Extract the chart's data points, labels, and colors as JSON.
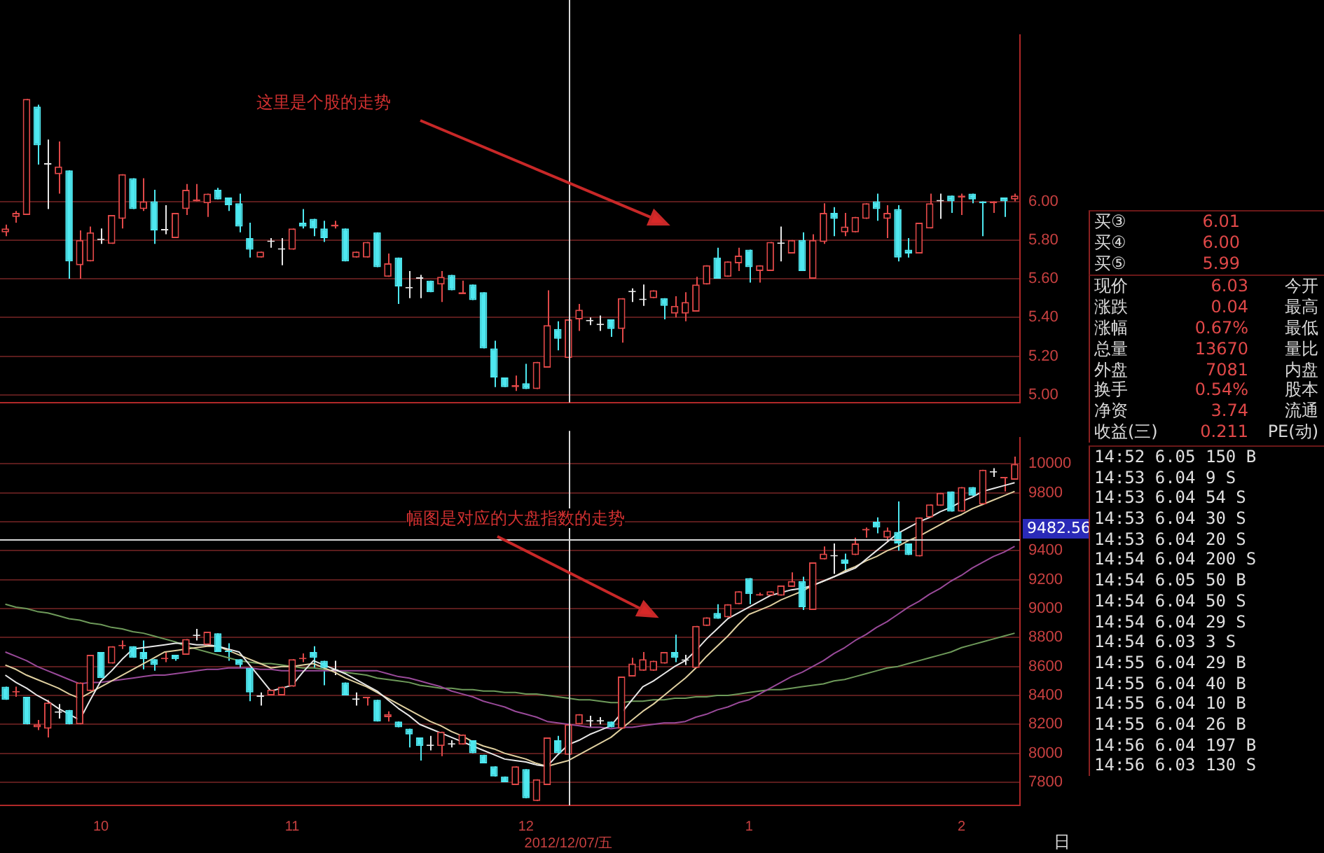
{
  "chart_data": [
    {
      "type": "candlestick",
      "tick_labels": "y",
      "grid": "y",
      "categories": [
        null,
        null,
        null,
        null,
        null,
        null,
        null,
        null,
        null,
        "10",
        null,
        null,
        null,
        null,
        null,
        null,
        null,
        null,
        null,
        null,
        null,
        null,
        null,
        null,
        null,
        null,
        null,
        "11",
        null,
        null,
        null,
        null,
        null,
        null,
        null,
        null,
        null,
        null,
        null,
        null,
        null,
        null,
        null,
        null,
        null,
        null,
        null,
        null,
        null,
        "12",
        null,
        null,
        null,
        "2012/12/07/五",
        null,
        null,
        null,
        null,
        null,
        null,
        null,
        null,
        null,
        null,
        null,
        null,
        null,
        null,
        null,
        null,
        "1",
        null,
        null,
        null,
        null,
        null,
        null,
        null,
        null,
        null,
        null,
        null,
        null,
        null,
        null,
        null,
        null,
        null,
        null,
        null,
        "2",
        null,
        null,
        null,
        null,
        null
      ],
      "ohlc": [
        [
          5.84,
          5.88,
          5.82,
          5.86
        ],
        [
          5.92,
          5.95,
          5.89,
          5.94
        ],
        [
          5.93,
          6.53,
          5.93,
          6.53
        ],
        [
          6.49,
          6.5,
          6.19,
          6.29
        ],
        [
          6.19,
          6.32,
          5.96,
          6.19
        ],
        [
          6.14,
          6.31,
          6.04,
          6.18
        ],
        [
          6.16,
          6.16,
          5.6,
          5.69
        ],
        [
          5.67,
          5.85,
          5.6,
          5.8
        ],
        [
          5.69,
          5.87,
          5.69,
          5.84
        ],
        [
          5.8,
          5.86,
          5.78,
          5.8
        ],
        [
          5.78,
          5.93,
          5.78,
          5.93
        ],
        [
          5.91,
          6.14,
          5.86,
          6.14
        ],
        [
          6.12,
          6.12,
          5.96,
          5.96
        ],
        [
          5.96,
          6.12,
          5.95,
          6.0
        ],
        [
          6.0,
          6.06,
          5.78,
          5.85
        ],
        [
          5.85,
          5.98,
          5.83,
          5.85
        ],
        [
          5.81,
          5.94,
          5.81,
          5.94
        ],
        [
          5.96,
          6.09,
          5.93,
          6.06
        ],
        [
          6.0,
          6.09,
          6.0,
          6.01
        ],
        [
          5.99,
          6.04,
          5.92,
          6.04
        ],
        [
          6.06,
          6.07,
          6.01,
          6.01
        ],
        [
          6.02,
          6.02,
          5.95,
          5.98
        ],
        [
          5.99,
          6.04,
          5.84,
          5.87
        ],
        [
          5.81,
          5.89,
          5.71,
          5.75
        ],
        [
          5.71,
          5.74,
          5.71,
          5.74
        ],
        [
          5.79,
          5.81,
          5.76,
          5.79
        ],
        [
          5.75,
          5.81,
          5.67,
          5.75
        ],
        [
          5.75,
          5.86,
          5.75,
          5.86
        ],
        [
          5.89,
          5.96,
          5.86,
          5.87
        ],
        [
          5.91,
          5.91,
          5.82,
          5.86
        ],
        [
          5.86,
          5.9,
          5.79,
          5.81
        ],
        [
          5.87,
          5.9,
          5.86,
          5.88
        ],
        [
          5.86,
          5.86,
          5.69,
          5.69
        ],
        [
          5.71,
          5.74,
          5.71,
          5.74
        ],
        [
          5.71,
          5.79,
          5.71,
          5.79
        ],
        [
          5.84,
          5.84,
          5.66,
          5.66
        ],
        [
          5.61,
          5.73,
          5.61,
          5.68
        ],
        [
          5.71,
          5.71,
          5.47,
          5.56
        ],
        [
          5.55,
          5.64,
          5.5,
          5.55
        ],
        [
          5.6,
          5.62,
          5.5,
          5.6
        ],
        [
          5.59,
          5.59,
          5.53,
          5.53
        ],
        [
          5.57,
          5.64,
          5.48,
          5.61
        ],
        [
          5.62,
          5.62,
          5.54,
          5.54
        ],
        [
          5.52,
          5.59,
          5.52,
          5.53
        ],
        [
          5.57,
          5.57,
          5.49,
          5.49
        ],
        [
          5.53,
          5.53,
          5.24,
          5.24
        ],
        [
          5.24,
          5.28,
          5.04,
          5.09
        ],
        [
          5.09,
          5.09,
          5.04,
          5.04
        ],
        [
          5.04,
          5.1,
          5.02,
          5.05
        ],
        [
          5.06,
          5.16,
          5.03,
          5.03
        ],
        [
          5.03,
          5.17,
          5.03,
          5.17
        ],
        [
          5.14,
          5.54,
          5.14,
          5.36
        ],
        [
          5.34,
          5.38,
          5.23,
          5.29
        ],
        [
          5.19,
          5.39,
          5.19,
          5.39
        ],
        [
          5.39,
          5.47,
          5.33,
          5.44
        ],
        [
          5.38,
          5.4,
          5.36,
          5.38
        ],
        [
          5.36,
          5.41,
          5.33,
          5.36
        ],
        [
          5.39,
          5.39,
          5.3,
          5.34
        ],
        [
          5.34,
          5.5,
          5.27,
          5.5
        ],
        [
          5.53,
          5.55,
          5.48,
          5.53
        ],
        [
          5.49,
          5.57,
          5.46,
          5.49
        ],
        [
          5.5,
          5.54,
          5.5,
          5.54
        ],
        [
          5.5,
          5.5,
          5.39,
          5.46
        ],
        [
          5.42,
          5.51,
          5.4,
          5.46
        ],
        [
          5.42,
          5.53,
          5.38,
          5.48
        ],
        [
          5.43,
          5.61,
          5.43,
          5.57
        ],
        [
          5.57,
          5.67,
          5.57,
          5.67
        ],
        [
          5.71,
          5.76,
          5.6,
          5.6
        ],
        [
          5.61,
          5.69,
          5.61,
          5.69
        ],
        [
          5.68,
          5.76,
          5.64,
          5.72
        ],
        [
          5.75,
          5.75,
          5.58,
          5.66
        ],
        [
          5.64,
          5.67,
          5.58,
          5.67
        ],
        [
          5.64,
          5.79,
          5.64,
          5.79
        ],
        [
          5.78,
          5.87,
          5.69,
          5.78
        ],
        [
          5.73,
          5.8,
          5.73,
          5.8
        ],
        [
          5.8,
          5.84,
          5.64,
          5.64
        ],
        [
          5.6,
          5.83,
          5.6,
          5.8
        ],
        [
          5.79,
          5.99,
          5.78,
          5.94
        ],
        [
          5.94,
          5.97,
          5.82,
          5.91
        ],
        [
          5.84,
          5.94,
          5.82,
          5.87
        ],
        [
          5.84,
          5.92,
          5.84,
          5.92
        ],
        [
          5.91,
          5.99,
          5.91,
          5.99
        ],
        [
          6.0,
          6.04,
          5.9,
          5.96
        ],
        [
          5.91,
          5.98,
          5.81,
          5.94
        ],
        [
          5.96,
          5.98,
          5.69,
          5.71
        ],
        [
          5.75,
          5.81,
          5.71,
          5.73
        ],
        [
          5.73,
          5.89,
          5.73,
          5.89
        ],
        [
          5.86,
          6.04,
          5.86,
          5.99
        ],
        [
          6.0,
          6.04,
          5.91,
          6.0
        ],
        [
          6.03,
          6.03,
          5.94,
          6.0
        ],
        [
          6.02,
          6.04,
          5.93,
          6.03
        ],
        [
          6.04,
          6.04,
          5.99,
          6.01
        ],
        [
          6.0,
          6.0,
          5.82,
          5.99
        ],
        [
          5.99,
          6.0,
          5.94,
          6.0
        ],
        [
          6.02,
          6.02,
          5.92,
          6.0
        ],
        [
          6.01,
          6.04,
          6.0,
          6.03
        ]
      ],
      "colors": [
        "#e04848",
        "#e04848",
        "#e04848",
        "#4ee8f0",
        "#e8e8e8",
        "#e04848",
        "#4ee8f0",
        "#e04848",
        "#e04848",
        "#e8e8e8",
        "#e04848",
        "#e04848",
        "#4ee8f0",
        "#e04848",
        "#4ee8f0",
        "#e8e8e8",
        "#e04848",
        "#e04848",
        "#e04848",
        "#e04848",
        "#4ee8f0",
        "#4ee8f0",
        "#4ee8f0",
        "#4ee8f0",
        "#e04848",
        "#e8e8e8",
        "#e8e8e8",
        "#e04848",
        "#4ee8f0",
        "#4ee8f0",
        "#4ee8f0",
        "#e04848",
        "#4ee8f0",
        "#e04848",
        "#e04848",
        "#4ee8f0",
        "#e04848",
        "#4ee8f0",
        "#e8e8e8",
        "#e8e8e8",
        "#4ee8f0",
        "#e04848",
        "#4ee8f0",
        "#e04848",
        "#4ee8f0",
        "#4ee8f0",
        "#4ee8f0",
        "#4ee8f0",
        "#e04848",
        "#4ee8f0",
        "#e04848",
        "#e04848",
        "#4ee8f0",
        "#e04848",
        "#e04848",
        "#e8e8e8",
        "#e8e8e8",
        "#4ee8f0",
        "#e04848",
        "#e8e8e8",
        "#e8e8e8",
        "#e04848",
        "#4ee8f0",
        "#e04848",
        "#e04848",
        "#e04848",
        "#e04848",
        "#4ee8f0",
        "#e04848",
        "#e04848",
        "#4ee8f0",
        "#e04848",
        "#e04848",
        "#e8e8e8",
        "#e04848",
        "#4ee8f0",
        "#e04848",
        "#e04848",
        "#4ee8f0",
        "#e04848",
        "#e04848",
        "#e04848",
        "#4ee8f0",
        "#e04848",
        "#4ee8f0",
        "#4ee8f0",
        "#e04848",
        "#e04848",
        "#e8e8e8",
        "#4ee8f0",
        "#e04848",
        "#4ee8f0",
        "#4ee8f0",
        "#e04848",
        "#4ee8f0",
        "#e04848"
      ],
      "ylim": [
        4.96,
        6.86
      ],
      "yticks": [
        {
          "value": 5,
          "label": "5.00"
        },
        {
          "value": 5.2,
          "label": "5.20"
        },
        {
          "value": 5.4,
          "label": "5.40"
        },
        {
          "value": 5.6,
          "label": "5.60"
        },
        {
          "value": 5.8,
          "label": "5.80"
        },
        {
          "value": 6,
          "label": "6.00"
        }
      ],
      "ref_lines": [
        {
          "axis": "x",
          "value": "2012/12/07/五",
          "color": "#d8d8d8"
        }
      ],
      "annotations": [
        "这里是个股的走势"
      ]
    },
    {
      "type": "candlestick",
      "grid": "y",
      "categories": [
        null,
        null,
        null,
        null,
        null,
        null,
        null,
        null,
        null,
        "10",
        null,
        null,
        null,
        null,
        null,
        null,
        null,
        null,
        null,
        null,
        null,
        null,
        null,
        null,
        null,
        null,
        null,
        "11",
        null,
        null,
        null,
        null,
        null,
        null,
        null,
        null,
        null,
        null,
        null,
        null,
        null,
        null,
        null,
        null,
        null,
        null,
        null,
        null,
        null,
        "12",
        null,
        null,
        null,
        "2012/12/07/五",
        null,
        null,
        null,
        null,
        null,
        null,
        null,
        null,
        null,
        null,
        null,
        null,
        null,
        null,
        null,
        null,
        "1",
        null,
        null,
        null,
        null,
        null,
        null,
        null,
        null,
        null,
        null,
        null,
        null,
        null,
        null,
        null,
        null,
        null,
        null,
        null,
        "2",
        null,
        null,
        null,
        null,
        null
      ],
      "ohlc": [
        [
          8460,
          8460,
          8370,
          8370
        ],
        [
          8420,
          8460,
          8390,
          8430
        ],
        [
          8390,
          8390,
          8200,
          8200
        ],
        [
          8180,
          8230,
          8160,
          8200
        ],
        [
          8170,
          8370,
          8110,
          8350
        ],
        [
          8280,
          8340,
          8240,
          8280
        ],
        [
          8300,
          8300,
          8200,
          8200
        ],
        [
          8200,
          8490,
          8200,
          8490
        ],
        [
          8430,
          8680,
          8430,
          8680
        ],
        [
          8700,
          8700,
          8520,
          8520
        ],
        [
          8620,
          8740,
          8620,
          8740
        ],
        [
          8740,
          8780,
          8720,
          8750
        ],
        [
          8740,
          8740,
          8660,
          8660
        ],
        [
          8700,
          8780,
          8580,
          8650
        ],
        [
          8650,
          8650,
          8570,
          8610
        ],
        [
          8650,
          8700,
          8630,
          8660
        ],
        [
          8680,
          8680,
          8640,
          8650
        ],
        [
          8680,
          8790,
          8680,
          8790
        ],
        [
          8810,
          8860,
          8780,
          8810
        ],
        [
          8750,
          8840,
          8750,
          8840
        ],
        [
          8830,
          8830,
          8700,
          8700
        ],
        [
          8710,
          8760,
          8640,
          8700
        ],
        [
          8650,
          8650,
          8590,
          8610
        ],
        [
          8590,
          8590,
          8360,
          8420
        ],
        [
          8390,
          8420,
          8330,
          8390
        ],
        [
          8400,
          8440,
          8400,
          8440
        ],
        [
          8400,
          8460,
          8400,
          8460
        ],
        [
          8460,
          8650,
          8460,
          8650
        ],
        [
          8650,
          8690,
          8630,
          8660
        ],
        [
          8700,
          8740,
          8590,
          8660
        ],
        [
          8640,
          8640,
          8470,
          8590
        ],
        [
          8570,
          8640,
          8540,
          8570
        ],
        [
          8490,
          8490,
          8400,
          8400
        ],
        [
          8370,
          8420,
          8330,
          8370
        ],
        [
          8380,
          8390,
          8330,
          8390
        ],
        [
          8370,
          8370,
          8220,
          8220
        ],
        [
          8250,
          8290,
          8220,
          8270
        ],
        [
          8220,
          8220,
          8180,
          8180
        ],
        [
          8170,
          8170,
          8040,
          8130
        ],
        [
          8110,
          8110,
          7950,
          8050
        ],
        [
          8050,
          8120,
          8020,
          8050
        ],
        [
          8050,
          8150,
          7980,
          8150
        ],
        [
          8060,
          8090,
          8040,
          8060
        ],
        [
          8060,
          8130,
          8060,
          8130
        ],
        [
          8090,
          8090,
          8000,
          8000
        ],
        [
          7990,
          7990,
          7930,
          7930
        ],
        [
          7910,
          7910,
          7840,
          7840
        ],
        [
          7840,
          7840,
          7800,
          7800
        ],
        [
          7780,
          7910,
          7780,
          7910
        ],
        [
          7890,
          7890,
          7690,
          7690
        ],
        [
          7670,
          7820,
          7670,
          7820
        ],
        [
          7780,
          8110,
          7780,
          8110
        ],
        [
          8090,
          8120,
          8000,
          8000
        ],
        [
          7990,
          8200,
          7990,
          8200
        ],
        [
          8200,
          8270,
          8200,
          8270
        ],
        [
          8220,
          8260,
          8180,
          8220
        ],
        [
          8220,
          8250,
          8200,
          8220
        ],
        [
          8220,
          8220,
          8180,
          8180
        ],
        [
          8170,
          8530,
          8170,
          8530
        ],
        [
          8530,
          8660,
          8530,
          8620
        ],
        [
          8570,
          8700,
          8570,
          8650
        ],
        [
          8570,
          8640,
          8570,
          8640
        ],
        [
          8620,
          8700,
          8620,
          8700
        ],
        [
          8700,
          8820,
          8630,
          8660
        ],
        [
          8640,
          8680,
          8610,
          8640
        ],
        [
          8590,
          8880,
          8590,
          8880
        ],
        [
          8880,
          8940,
          8880,
          8940
        ],
        [
          8970,
          9030,
          8930,
          8930
        ],
        [
          8940,
          9030,
          8940,
          9030
        ],
        [
          9030,
          9120,
          9030,
          9120
        ],
        [
          9210,
          9210,
          9030,
          9100
        ],
        [
          9090,
          9110,
          9090,
          9100
        ],
        [
          9090,
          9120,
          9090,
          9120
        ],
        [
          9090,
          9160,
          9090,
          9160
        ],
        [
          9150,
          9250,
          9150,
          9190
        ],
        [
          9190,
          9220,
          8990,
          9010
        ],
        [
          8990,
          9320,
          8990,
          9320
        ],
        [
          9340,
          9430,
          9340,
          9380
        ],
        [
          9360,
          9450,
          9240,
          9360
        ],
        [
          9340,
          9380,
          9250,
          9310
        ],
        [
          9370,
          9490,
          9370,
          9450
        ],
        [
          9540,
          9560,
          9490,
          9550
        ],
        [
          9600,
          9630,
          9520,
          9560
        ],
        [
          9490,
          9560,
          9460,
          9540
        ],
        [
          9530,
          9740,
          9400,
          9450
        ],
        [
          9450,
          9450,
          9370,
          9370
        ],
        [
          9360,
          9630,
          9360,
          9630
        ],
        [
          9630,
          9720,
          9630,
          9720
        ],
        [
          9710,
          9800,
          9710,
          9800
        ],
        [
          9810,
          9810,
          9670,
          9670
        ],
        [
          9670,
          9840,
          9670,
          9840
        ],
        [
          9840,
          9840,
          9780,
          9780
        ],
        [
          9720,
          9960,
          9720,
          9960
        ],
        [
          9940,
          9970,
          9910,
          9940
        ],
        [
          9900,
          9910,
          9810,
          9910
        ],
        [
          9890,
          10050,
          9890,
          10000
        ]
      ],
      "colors": [
        "#4ee8f0",
        "#e04848",
        "#4ee8f0",
        "#e04848",
        "#e04848",
        "#e8e8e8",
        "#4ee8f0",
        "#e04848",
        "#e04848",
        "#4ee8f0",
        "#e04848",
        "#e04848",
        "#4ee8f0",
        "#4ee8f0",
        "#4ee8f0",
        "#e04848",
        "#4ee8f0",
        "#e04848",
        "#e8e8e8",
        "#e04848",
        "#4ee8f0",
        "#4ee8f0",
        "#4ee8f0",
        "#4ee8f0",
        "#e8e8e8",
        "#e04848",
        "#e04848",
        "#e04848",
        "#e04848",
        "#4ee8f0",
        "#4ee8f0",
        "#e8e8e8",
        "#4ee8f0",
        "#e8e8e8",
        "#e04848",
        "#4ee8f0",
        "#e04848",
        "#4ee8f0",
        "#4ee8f0",
        "#4ee8f0",
        "#e8e8e8",
        "#e04848",
        "#e8e8e8",
        "#e04848",
        "#4ee8f0",
        "#4ee8f0",
        "#4ee8f0",
        "#4ee8f0",
        "#e04848",
        "#4ee8f0",
        "#e04848",
        "#e04848",
        "#4ee8f0",
        "#e04848",
        "#e04848",
        "#e8e8e8",
        "#e8e8e8",
        "#4ee8f0",
        "#e04848",
        "#e04848",
        "#e04848",
        "#e04848",
        "#e04848",
        "#4ee8f0",
        "#e8e8e8",
        "#e04848",
        "#e04848",
        "#4ee8f0",
        "#e04848",
        "#e04848",
        "#4ee8f0",
        "#e04848",
        "#e04848",
        "#e04848",
        "#e04848",
        "#4ee8f0",
        "#e04848",
        "#e04848",
        "#e8e8e8",
        "#4ee8f0",
        "#e04848",
        "#e04848",
        "#4ee8f0",
        "#e04848",
        "#4ee8f0",
        "#4ee8f0",
        "#e04848",
        "#e04848",
        "#e04848",
        "#4ee8f0",
        "#e04848",
        "#4ee8f0",
        "#e04848",
        "#e8e8e8",
        "#e04848",
        "#e04848"
      ],
      "series": [
        {
          "type": "line",
          "color": "#e8e8e8",
          "values": [
            8540,
            8490,
            8450,
            8400,
            8360,
            8310,
            8270,
            8230,
            8370,
            8500,
            8570,
            8650,
            8720,
            8730,
            8740,
            8750,
            8760,
            8760,
            8750,
            8750,
            8740,
            8720,
            8700,
            8610,
            8520,
            8430,
            8450,
            8470,
            8560,
            8640,
            8610,
            8580,
            8550,
            8510,
            8470,
            8430,
            8370,
            8310,
            8260,
            8200,
            8170,
            8140,
            8110,
            8080,
            8050,
            8020,
            7990,
            7960,
            7950,
            7940,
            7920,
            7910,
            7990,
            8060,
            8090,
            8130,
            8160,
            8190,
            8280,
            8370,
            8460,
            8500,
            8550,
            8600,
            8640,
            8710,
            8790,
            8860,
            8930,
            8970,
            9010,
            9050,
            9090,
            9110,
            9130,
            9140,
            9160,
            9190,
            9220,
            9250,
            9280,
            9340,
            9400,
            9460,
            9520,
            9560,
            9600,
            9630,
            9670,
            9700,
            9740,
            9770,
            9810,
            9830,
            9850,
            9870
          ]
        },
        {
          "type": "line",
          "color": "#e0d0a0",
          "values": [
            8610,
            8580,
            8540,
            8510,
            8480,
            8450,
            8410,
            8380,
            8420,
            8460,
            8500,
            8540,
            8580,
            8620,
            8660,
            8700,
            8710,
            8720,
            8730,
            8740,
            8740,
            8710,
            8680,
            8650,
            8620,
            8590,
            8600,
            8600,
            8610,
            8620,
            8590,
            8560,
            8520,
            8490,
            8460,
            8420,
            8380,
            8340,
            8300,
            8260,
            8220,
            8190,
            8150,
            8120,
            8080,
            8050,
            8030,
            8000,
            7980,
            7960,
            7930,
            7910,
            7930,
            7950,
            7990,
            8030,
            8070,
            8110,
            8170,
            8230,
            8290,
            8340,
            8400,
            8460,
            8520,
            8590,
            8670,
            8740,
            8810,
            8890,
            8960,
            8990,
            9020,
            9060,
            9090,
            9120,
            9160,
            9190,
            9220,
            9260,
            9290,
            9330,
            9360,
            9400,
            9430,
            9470,
            9500,
            9540,
            9580,
            9620,
            9650,
            9690,
            9720,
            9750,
            9780,
            9810
          ]
        },
        {
          "type": "line",
          "color": "#9a4a9a",
          "values": [
            8700,
            8670,
            8640,
            8600,
            8570,
            8540,
            8510,
            8480,
            8490,
            8490,
            8500,
            8510,
            8520,
            8530,
            8540,
            8540,
            8550,
            8560,
            8570,
            8580,
            8580,
            8590,
            8590,
            8590,
            8580,
            8580,
            8570,
            8570,
            8570,
            8570,
            8570,
            8570,
            8570,
            8570,
            8570,
            8570,
            8550,
            8530,
            8520,
            8500,
            8480,
            8460,
            8430,
            8410,
            8390,
            8360,
            8340,
            8320,
            8290,
            8270,
            8250,
            8220,
            8210,
            8200,
            8190,
            8180,
            8180,
            8170,
            8180,
            8180,
            8190,
            8200,
            8210,
            8210,
            8220,
            8250,
            8270,
            8300,
            8320,
            8350,
            8370,
            8410,
            8450,
            8490,
            8530,
            8560,
            8600,
            8640,
            8690,
            8730,
            8780,
            8820,
            8870,
            8910,
            8960,
            9010,
            9050,
            9100,
            9140,
            9190,
            9230,
            9280,
            9320,
            9360,
            9390,
            9430
          ]
        },
        {
          "type": "line",
          "color": "#6e9a5a",
          "values": [
            9030,
            9010,
            9000,
            8980,
            8970,
            8950,
            8930,
            8920,
            8900,
            8890,
            8870,
            8860,
            8840,
            8830,
            8810,
            8790,
            8770,
            8740,
            8720,
            8700,
            8680,
            8660,
            8640,
            8630,
            8620,
            8620,
            8610,
            8600,
            8590,
            8590,
            8580,
            8570,
            8560,
            8550,
            8540,
            8520,
            8510,
            8500,
            8490,
            8470,
            8460,
            8450,
            8450,
            8440,
            8440,
            8430,
            8430,
            8420,
            8420,
            8410,
            8410,
            8400,
            8390,
            8380,
            8370,
            8370,
            8360,
            8350,
            8350,
            8360,
            8360,
            8370,
            8370,
            8380,
            8380,
            8390,
            8390,
            8400,
            8400,
            8410,
            8420,
            8430,
            8440,
            8440,
            8450,
            8460,
            8470,
            8480,
            8500,
            8510,
            8530,
            8550,
            8570,
            8590,
            8600,
            8620,
            8640,
            8660,
            8680,
            8700,
            8730,
            8750,
            8770,
            8790,
            8810,
            8830
          ]
        }
      ],
      "ylim": [
        7640,
        10180
      ],
      "yticks": [
        7800,
        8000,
        8200,
        8400,
        8600,
        8800,
        9000,
        9200,
        9400,
        {
          "value": 9600,
          "label": null
        },
        9800,
        10000
      ],
      "ref_lines": [
        {
          "axis": "x",
          "value": "2012/12/07/五",
          "color": "#d8d8d8"
        },
        {
          "axis": "y",
          "value": 9482.56,
          "label": "9482.56",
          "color": "#d8d8d8"
        }
      ],
      "annotations": [
        "幅图是对应的大盘指数的走势",
        "日"
      ]
    },
    {
      "type": "other",
      "annotations": [
        "买③",
        "6.01",
        "买④",
        "6.00",
        "买⑤",
        "5.99"
      ]
    },
    {
      "type": "other",
      "annotations": [
        "现价",
        "6.03",
        "今开",
        "涨跌",
        "0.04",
        "最高",
        "涨幅",
        "0.67%",
        "最低",
        "总量",
        "13670",
        "量比",
        "外盘",
        "7081",
        "内盘",
        "换手",
        "0.54%",
        "股本",
        "净资",
        "3.74",
        "流通",
        "收益(三)",
        "0.211",
        "PE(动)"
      ]
    },
    {
      "type": "other",
      "annotations": [
        "14:52 6.05 150 B",
        "14:53 6.04 9 S",
        "14:53 6.04 54 S",
        "14:53 6.04 30 S",
        "14:53 6.04 20 S",
        "14:54 6.04 200 S",
        "14:54 6.05 50 B",
        "14:54 6.04 50 S",
        "14:54 6.04 29 S",
        "14:54 6.03 3 S",
        "14:55 6.04 29 B",
        "14:55 6.04 40 B",
        "14:55 6.04 10 B",
        "14:55 6.04 26 B",
        "14:56 6.04 197 B",
        "14:56 6.03 130 S"
      ]
    }
  ]
}
